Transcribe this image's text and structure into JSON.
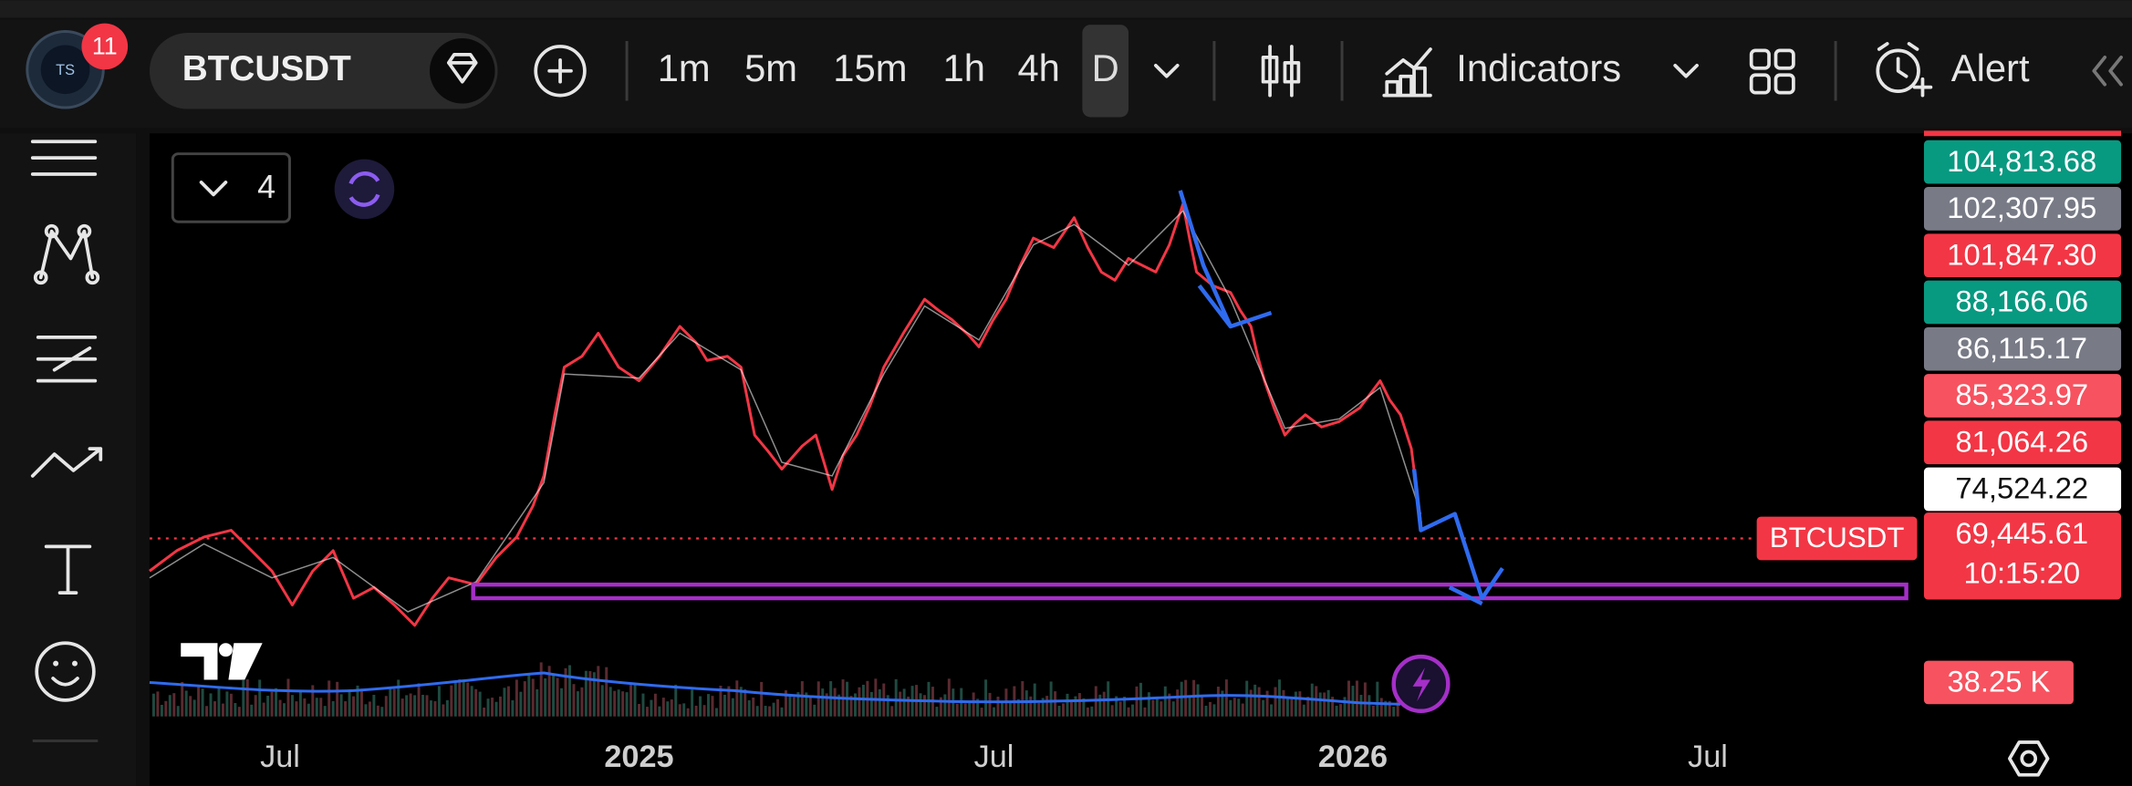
{
  "toolbar": {
    "notification_count": "11",
    "symbol": "BTCUSDT",
    "intervals": [
      "1m",
      "5m",
      "15m",
      "1h",
      "4h",
      "D"
    ],
    "active_interval": "D",
    "indicators": "Indicators",
    "alert": "Alert"
  },
  "chart": {
    "layout_count": "4",
    "price_labels": [
      {
        "text": "104,813.68",
        "color": "#089981"
      },
      {
        "text": "102,307.95",
        "color": "#787b86"
      },
      {
        "text": "101,847.30",
        "color": "#f23645"
      },
      {
        "text": "88,166.06",
        "color": "#089981"
      },
      {
        "text": "86,115.17",
        "color": "#787b86"
      },
      {
        "text": "85,323.97",
        "color": "#f7525f"
      },
      {
        "text": "81,064.26",
        "color": "#f23645"
      },
      {
        "text": "74,524.22",
        "color": "#ffffff"
      }
    ],
    "symbol_label": "BTCUSDT",
    "last_price": "69,445.61",
    "countdown": "10:15:20",
    "volume_label": "38.25 K",
    "x_labels": [
      "Jul",
      "2025",
      "Jul",
      "2026",
      "Jul"
    ]
  }
}
